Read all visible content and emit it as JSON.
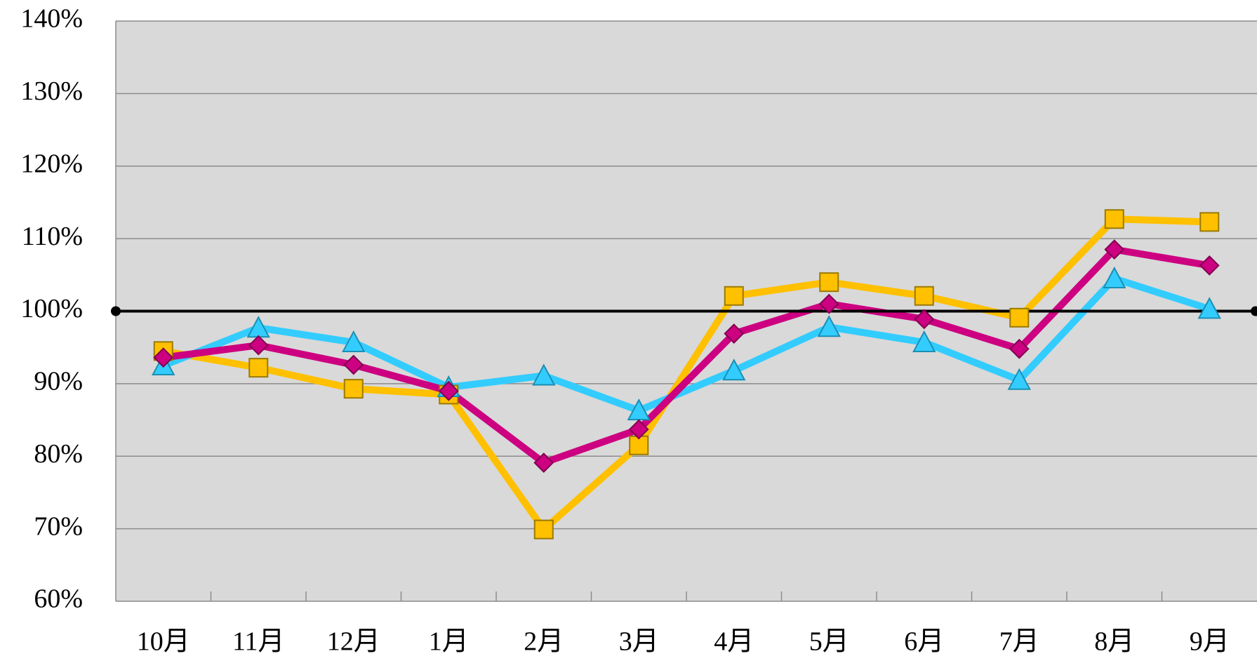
{
  "chart_data": {
    "type": "line",
    "categories": [
      "10月",
      "11月",
      "12月",
      "1月",
      "2月",
      "3月",
      "4月",
      "5月",
      "6月",
      "7月",
      "8月",
      "9月"
    ],
    "series": [
      {
        "color": "#FFC000",
        "marker": "square",
        "values": [
          94.5,
          92.2,
          89.3,
          88.5,
          69.9,
          81.5,
          102.1,
          104,
          102.1,
          99.1,
          112.7,
          112.3
        ]
      },
      {
        "color": "#33CCFF",
        "marker": "triangle",
        "values": [
          92.5,
          97.7,
          95.7,
          89.5,
          91.1,
          86.3,
          91.8,
          97.8,
          95.7,
          90.5,
          104.5,
          100.3
        ]
      },
      {
        "color": "#CC0080",
        "marker": "diamond",
        "values": [
          93.6,
          95.3,
          92.6,
          89,
          79.1,
          83.7,
          96.9,
          101,
          98.9,
          94.8,
          108.5,
          106.3
        ]
      }
    ],
    "ylim": [
      60,
      140
    ],
    "yticks": [
      {
        "value": 60,
        "label": "60%"
      },
      {
        "value": 70,
        "label": "70%"
      },
      {
        "value": 80,
        "label": "80%"
      },
      {
        "value": 90,
        "label": "90%"
      },
      {
        "value": 100,
        "label": "100%"
      },
      {
        "value": 110,
        "label": "110%"
      },
      {
        "value": 120,
        "label": "120%"
      },
      {
        "value": 130,
        "label": "130%"
      },
      {
        "value": 140,
        "label": "140%"
      }
    ],
    "grid": true,
    "reference_line": {
      "value": 100,
      "color": "#000000"
    }
  }
}
